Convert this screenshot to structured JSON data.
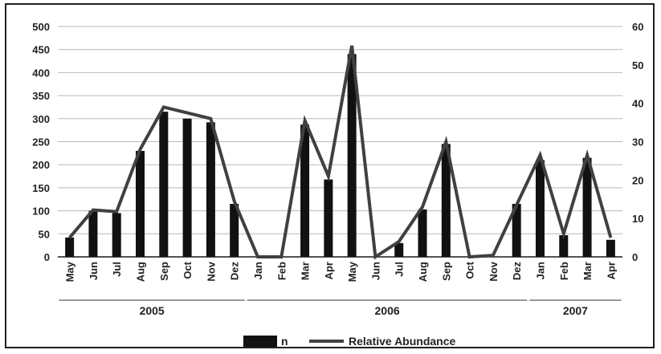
{
  "chart_data": {
    "type": "bar+line",
    "categories": [
      "May",
      "Jun",
      "Jul",
      "Aug",
      "Sep",
      "Oct",
      "Nov",
      "Dez",
      "Jan",
      "Feb",
      "Mar",
      "Apr",
      "May",
      "Jun",
      "Jul",
      "Aug",
      "Sep",
      "Oct",
      "Nov",
      "Dez",
      "Jan",
      "Feb",
      "Mar",
      "Apr"
    ],
    "year_groups": [
      {
        "label": "2005",
        "start": 0,
        "end": 7
      },
      {
        "label": "2006",
        "start": 8,
        "end": 19
      },
      {
        "label": "2007",
        "start": 20,
        "end": 23
      }
    ],
    "series": [
      {
        "name": "n",
        "kind": "bar",
        "axis": "left",
        "values": [
          42,
          100,
          95,
          230,
          315,
          300,
          292,
          115,
          0,
          0,
          287,
          168,
          440,
          0,
          30,
          103,
          245,
          0,
          0,
          115,
          210,
          47,
          215,
          37
        ]
      },
      {
        "name": "Relative Abundance",
        "kind": "line",
        "axis": "right",
        "values": [
          5,
          12.2,
          11.8,
          28,
          39,
          37.5,
          36,
          14.5,
          0,
          0,
          35.5,
          21,
          55,
          0,
          4,
          13,
          30,
          0,
          0.4,
          13.5,
          26.5,
          6,
          26.5,
          5
        ]
      }
    ],
    "ylim_left": [
      0,
      500
    ],
    "yticks_left": [
      "0",
      "50",
      "100",
      "150",
      "200",
      "250",
      "300",
      "350",
      "400",
      "450",
      "500"
    ],
    "ylim_right": [
      0,
      60
    ],
    "yticks_right": [
      "0",
      "10",
      "20",
      "30",
      "40",
      "50",
      "60"
    ],
    "grid": true,
    "legend_position": "bottom-center",
    "colors": {
      "bar": "#111111",
      "line": "#404040",
      "grid": "#b8b8b8",
      "axis": "#1a1a1a"
    }
  }
}
